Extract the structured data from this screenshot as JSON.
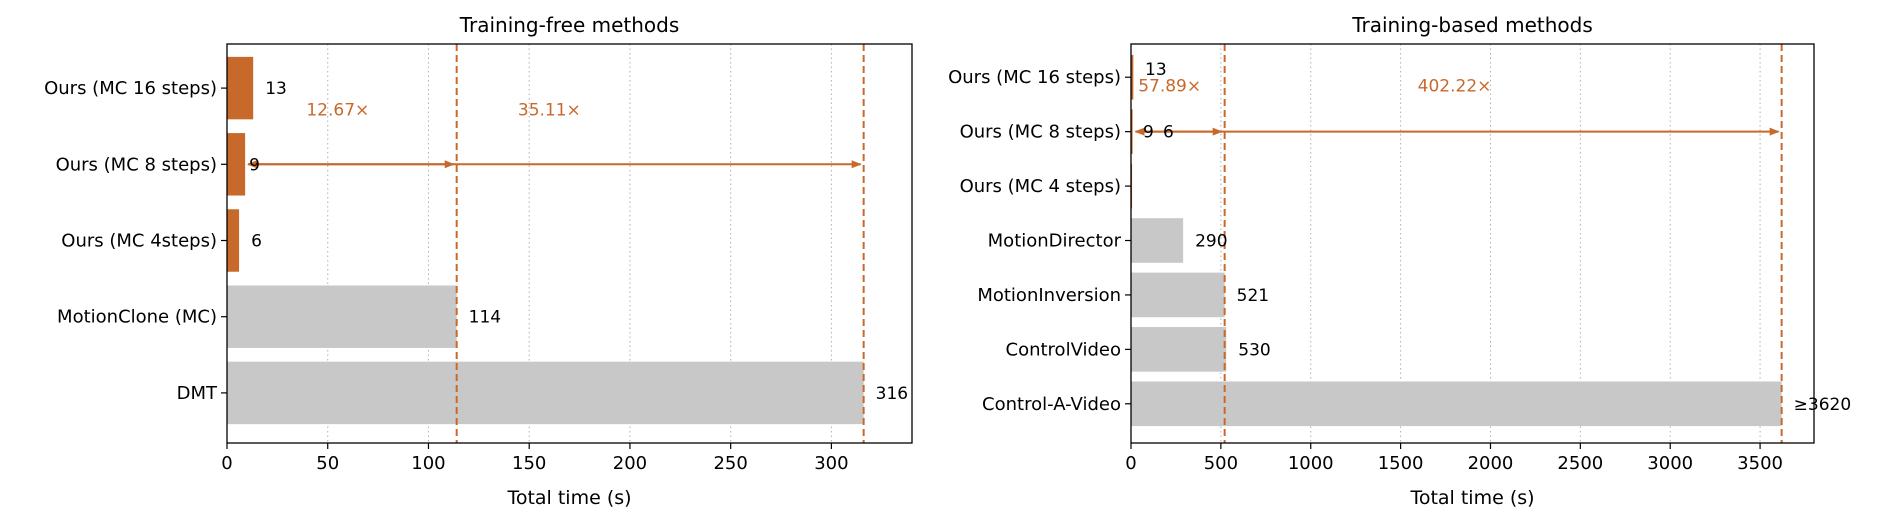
{
  "chart_data": [
    {
      "type": "bar",
      "orientation": "horizontal",
      "title": "Training-free methods",
      "xlabel": "Total time (s)",
      "ylabel": "",
      "xlim": [
        0,
        340
      ],
      "xticks": [
        0,
        50,
        100,
        150,
        200,
        250,
        300
      ],
      "grid": "vertical dotted",
      "categories": [
        "Ours (MC 16 steps)",
        "Ours (MC 8 steps)",
        "Ours (MC 4steps)",
        "MotionClone (MC)",
        "DMT"
      ],
      "values": [
        13,
        9,
        6,
        114,
        316
      ],
      "value_labels": [
        "13",
        "9",
        "6",
        "114",
        "316"
      ],
      "highlight": [
        true,
        true,
        true,
        false,
        false
      ],
      "reference_lines": [
        114,
        316
      ],
      "arrows": [
        {
          "from": 9,
          "to": 114,
          "label": "12.67×"
        },
        {
          "from": 9,
          "to": 316,
          "label": "35.11×"
        }
      ]
    },
    {
      "type": "bar",
      "orientation": "horizontal",
      "title": "Training-based methods",
      "xlabel": "Total time (s)",
      "ylabel": "",
      "xlim": [
        0,
        3800
      ],
      "xticks": [
        0,
        500,
        1000,
        1500,
        2000,
        2500,
        3000,
        3500
      ],
      "grid": "vertical dotted",
      "categories": [
        "Ours (MC 16 steps)",
        "Ours (MC 8 steps)",
        "Ours (MC 4 steps)",
        "MotionDirector",
        "MotionInversion",
        "ControlVideo",
        "Control-A-Video"
      ],
      "values": [
        13,
        9,
        6,
        290,
        521,
        530,
        3620
      ],
      "value_labels": [
        "13",
        "9",
        "6",
        "290",
        "521",
        "530",
        "≥3620"
      ],
      "highlight": [
        true,
        true,
        true,
        false,
        false,
        false,
        false
      ],
      "reference_lines": [
        521,
        3620
      ],
      "arrows": [
        {
          "from": 9,
          "to": 521,
          "label": "57.89×"
        },
        {
          "from": 9,
          "to": 3620,
          "label": "402.22×"
        }
      ]
    }
  ],
  "colors": {
    "highlight": "#c8692c",
    "baseline": "#c8c8c8",
    "annotation": "#c8692c",
    "grid": "#b0b0b0"
  }
}
